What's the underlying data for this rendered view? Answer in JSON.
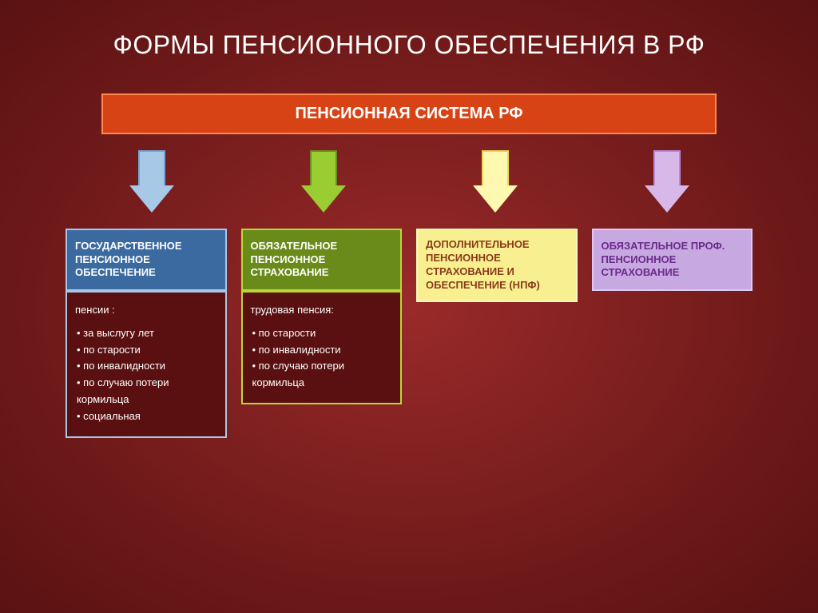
{
  "title": "ФОРМЫ ПЕНСИОННОГО ОБЕСПЕЧЕНИЯ В РФ",
  "root": {
    "label": "ПЕНСИОННАЯ СИСТЕМА РФ",
    "bg": "#d84315",
    "border": "#ff8a50"
  },
  "columns": [
    {
      "arrow_fill": "#a8c8e8",
      "arrow_border": "#6fa8d8",
      "box_bg": "#3a6aa0",
      "box_border": "#a8c8e8",
      "box_text": "#ffffff",
      "label": "ГОСУДАРСТВЕННОЕ ПЕНСИОННОЕ ОБЕСПЕЧЕНИЕ",
      "sub_border": "#3a6aa0",
      "sub_lead": "пенсии :",
      "sub_items": [
        "за выслугу лет",
        "по старости",
        "по инвалидности",
        "по случаю потери кормильца",
        "социальная"
      ]
    },
    {
      "arrow_fill": "#9acd32",
      "arrow_border": "#6b8e23",
      "box_bg": "#6a8a1a",
      "box_border": "#b8d838",
      "box_text": "#ffffff",
      "label": "ОБЯЗАТЕЛЬНОЕ ПЕНСИОННОЕ СТРАХОВАНИЕ",
      "sub_border": "#6a8a1a",
      "sub_lead": "трудовая пенсия:",
      "sub_items": [
        "по старости",
        "по инвалидности",
        "по случаю потери кормильца"
      ]
    },
    {
      "arrow_fill": "#fff8b0",
      "arrow_border": "#e8d858",
      "box_bg": "#f8f090",
      "box_border": "#f8f8c0",
      "box_text": "#8a3a1a",
      "label": "ДОПОЛНИТЕЛЬНОЕ ПЕНСИОННОЕ СТРАХОВАНИЕ И ОБЕСПЕЧЕНИЕ (НПФ)"
    },
    {
      "arrow_fill": "#d8b8e8",
      "arrow_border": "#b888d8",
      "box_bg": "#c8a8e0",
      "box_border": "#e0c8f0",
      "box_text": "#6a2a8a",
      "label": "ОБЯЗАТЕЛЬНОЕ ПРОФ. ПЕНСИОННОЕ СТРАХОВАНИЕ"
    }
  ]
}
